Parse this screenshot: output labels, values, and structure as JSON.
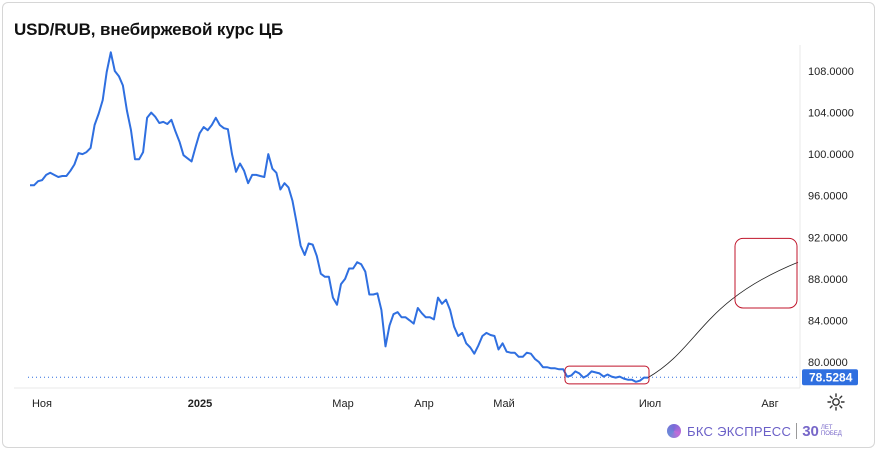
{
  "title": "USD/RUB, внебиржевой курс ЦБ",
  "brand": {
    "name": "БКС ЭКСПРЕСС",
    "logo_number": "30",
    "logo_small_1": "ЛЕТ",
    "logo_small_2": "ПОБЕД"
  },
  "settings_icon": "gear-icon",
  "colors": {
    "line": "#2f6fe0",
    "last_price_bg": "#2f6fe0",
    "highlight": "#c0152b",
    "forecast": "#222222"
  },
  "chart_data": {
    "type": "line",
    "title": "USD/RUB, внебиржевой курс ЦБ",
    "xlabel": "",
    "ylabel": "",
    "ylim": [
      77.5,
      110.5
    ],
    "y_ticks": [
      "108.0000",
      "104.0000",
      "100.0000",
      "96.0000",
      "92.0000",
      "88.0000",
      "84.0000",
      "80.0000"
    ],
    "x_ticks": [
      "Ноя",
      "2025",
      "Мар",
      "Апр",
      "Май",
      "Июл",
      "Авг"
    ],
    "last_price_label": "78.5284",
    "last_value": 78.5284,
    "series": [
      {
        "values": [
          97.0,
          97.0,
          97.4,
          97.5,
          98.0,
          98.2,
          98.0,
          97.8,
          97.9,
          97.9,
          98.4,
          99.0,
          100.1,
          100.0,
          100.2,
          100.6,
          102.8,
          103.9,
          105.2,
          107.9,
          109.8,
          108.0,
          107.5,
          106.6,
          104.2,
          102.3,
          99.5,
          99.5,
          100.2,
          103.5,
          104.0,
          103.6,
          103.0,
          103.1,
          102.9,
          103.3,
          102.2,
          101.2,
          99.9,
          99.6,
          99.3,
          100.7,
          102.0,
          102.6,
          102.3,
          102.8,
          103.5,
          102.8,
          102.5,
          102.4,
          100.0,
          98.3,
          99.1,
          98.4,
          97.2,
          98.0,
          98.0,
          97.9,
          97.8,
          100.0,
          98.6,
          98.2,
          96.6,
          97.2,
          96.8,
          95.5,
          93.4,
          91.2,
          90.3,
          91.4,
          91.3,
          90.2,
          88.5,
          88.2,
          88.2,
          86.2,
          85.5,
          87.5,
          88.0,
          89.0,
          89.0,
          89.6,
          89.4,
          88.7,
          86.5,
          86.5,
          86.6,
          85.0,
          81.5,
          83.5,
          84.6,
          84.8,
          84.3,
          84.3,
          84.0,
          83.7,
          85.2,
          84.7,
          84.3,
          84.3,
          84.1,
          86.2,
          85.6,
          86.0,
          85.0,
          83.4,
          82.5,
          82.8,
          81.8,
          81.4,
          80.8,
          81.6,
          82.5,
          82.8,
          82.6,
          82.5,
          81.2,
          81.8,
          81.0,
          80.9,
          80.9,
          80.5,
          80.5,
          80.9,
          80.8,
          80.3,
          80.0,
          79.5,
          79.5,
          79.4,
          79.4,
          79.3,
          79.3,
          78.6,
          78.7,
          79.1,
          78.9,
          78.5,
          78.7,
          79.1,
          79.0,
          78.9,
          78.6,
          78.8,
          78.6,
          78.5,
          78.6,
          78.4,
          78.3,
          78.3,
          78.1,
          78.2,
          78.5,
          78.5
        ]
      }
    ],
    "forecast": {
      "start_value": 78.5,
      "end_value": 89.6
    }
  }
}
